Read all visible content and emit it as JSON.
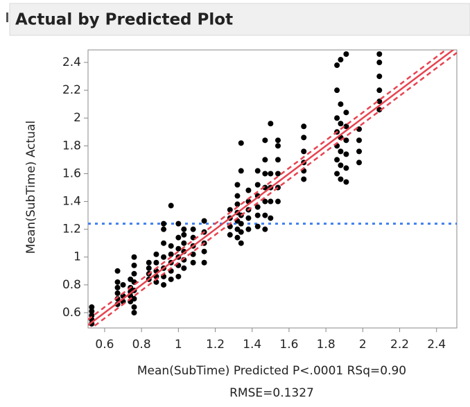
{
  "chart_data": {
    "type": "scatter",
    "title": "Actual by Predicted Plot",
    "ylabel": "Mean(SubTime) Actual",
    "xlabel": [
      "Mean(SubTime) Predicted P<.0001 RSq=0.90",
      "RMSE=0.1327"
    ],
    "xlim": [
      0.51,
      2.51
    ],
    "ylim": [
      0.49,
      2.49
    ],
    "xticks": [
      0.6,
      0.8,
      1,
      1.2,
      1.4,
      1.6,
      1.8,
      2,
      2.2,
      2.4
    ],
    "yticks": [
      0.6,
      0.8,
      1,
      1.2,
      1.4,
      1.6,
      1.8,
      2,
      2.2,
      2.4
    ],
    "color": "#000000",
    "fit": {
      "intercept": 0,
      "slope": 1,
      "confidence_halfwidth": 0.04,
      "color": "#e8434f"
    },
    "mean_line": {
      "value": 1.24,
      "color": "#3f7ff0"
    },
    "x": [
      0.53,
      0.53,
      0.53,
      0.53,
      0.53,
      0.67,
      0.67,
      0.67,
      0.67,
      0.67,
      0.67,
      0.7,
      0.7,
      0.7,
      0.74,
      0.74,
      0.74,
      0.74,
      0.74,
      0.76,
      0.76,
      0.76,
      0.76,
      0.76,
      0.76,
      0.76,
      0.76,
      0.84,
      0.84,
      0.84,
      0.84,
      0.88,
      0.88,
      0.88,
      0.88,
      0.88,
      0.92,
      0.92,
      0.92,
      0.92,
      0.92,
      0.92,
      0.92,
      0.96,
      0.96,
      0.96,
      0.96,
      0.96,
      0.96,
      1.0,
      1.0,
      1.0,
      1.0,
      1.0,
      1.0,
      1.03,
      1.03,
      1.03,
      1.03,
      1.03,
      1.03,
      1.08,
      1.08,
      1.08,
      1.08,
      1.08,
      1.14,
      1.14,
      1.14,
      1.14,
      1.14,
      1.28,
      1.28,
      1.28,
      1.28,
      1.32,
      1.32,
      1.32,
      1.32,
      1.32,
      1.32,
      1.32,
      1.34,
      1.34,
      1.34,
      1.34,
      1.34,
      1.34,
      1.38,
      1.38,
      1.38,
      1.38,
      1.38,
      1.43,
      1.43,
      1.43,
      1.43,
      1.43,
      1.43,
      1.47,
      1.47,
      1.47,
      1.47,
      1.47,
      1.47,
      1.47,
      1.5,
      1.5,
      1.5,
      1.5,
      1.5,
      1.54,
      1.54,
      1.54,
      1.54,
      1.54,
      1.54,
      1.68,
      1.68,
      1.68,
      1.68,
      1.68,
      1.68,
      1.86,
      1.86,
      1.86,
      1.86,
      1.86,
      1.86,
      1.86,
      1.88,
      1.88,
      1.88,
      1.88,
      1.88,
      1.88,
      1.88,
      1.91,
      1.91,
      1.91,
      1.91,
      1.91,
      1.91,
      1.91,
      1.98,
      1.98,
      1.98,
      1.98,
      2.09,
      2.09,
      2.09,
      2.09,
      2.09,
      2.09
    ],
    "y": [
      0.52,
      0.55,
      0.58,
      0.61,
      0.64,
      0.66,
      0.7,
      0.74,
      0.78,
      0.82,
      0.9,
      0.68,
      0.72,
      0.8,
      0.68,
      0.72,
      0.75,
      0.78,
      0.84,
      0.6,
      0.64,
      0.7,
      0.76,
      0.82,
      0.88,
      0.94,
      1.0,
      0.84,
      0.88,
      0.92,
      0.96,
      0.82,
      0.86,
      0.9,
      0.96,
      1.02,
      0.8,
      0.86,
      0.92,
      1.0,
      1.1,
      1.2,
      1.24,
      0.84,
      0.9,
      0.96,
      1.02,
      1.08,
      1.37,
      0.86,
      0.94,
      1.0,
      1.06,
      1.14,
      1.24,
      0.92,
      0.98,
      1.04,
      1.1,
      1.16,
      1.2,
      0.96,
      1.02,
      1.08,
      1.14,
      1.2,
      0.96,
      1.04,
      1.1,
      1.18,
      1.26,
      1.16,
      1.22,
      1.28,
      1.34,
      1.14,
      1.2,
      1.26,
      1.32,
      1.38,
      1.44,
      1.52,
      1.1,
      1.18,
      1.24,
      1.3,
      1.62,
      1.82,
      1.2,
      1.28,
      1.34,
      1.4,
      1.48,
      1.22,
      1.3,
      1.36,
      1.44,
      1.52,
      1.62,
      1.2,
      1.3,
      1.4,
      1.5,
      1.6,
      1.7,
      1.84,
      1.28,
      1.4,
      1.5,
      1.6,
      1.96,
      1.4,
      1.5,
      1.6,
      1.7,
      1.8,
      1.84,
      1.56,
      1.62,
      1.68,
      1.76,
      1.86,
      1.94,
      1.6,
      1.7,
      1.8,
      1.9,
      2.0,
      2.2,
      2.38,
      1.56,
      1.66,
      1.76,
      1.86,
      1.96,
      2.1,
      2.42,
      1.54,
      1.64,
      1.74,
      1.84,
      1.94,
      2.04,
      2.46,
      1.68,
      1.76,
      1.84,
      1.92,
      2.06,
      2.12,
      2.2,
      2.3,
      2.4,
      2.46
    ]
  }
}
